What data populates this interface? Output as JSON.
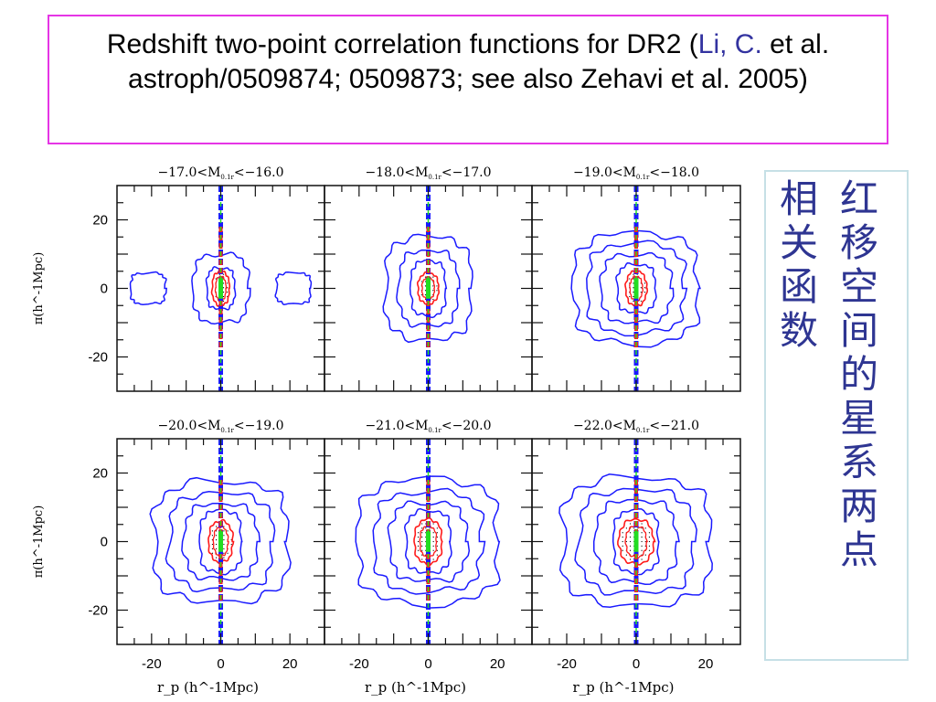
{
  "slide": {
    "title_main": "Redshift two-point correlation functions for DR2 (",
    "title_cite": "Li, C.",
    "title_rest": " et al. astroph/0509874; 0509873; see also Zehavi et al. 2005)",
    "side_text_col1": [
      "红",
      "移",
      "空",
      "间",
      "的",
      "星",
      "系",
      "两",
      "点"
    ],
    "side_text_col2": [
      "相",
      "关",
      "函",
      "数"
    ],
    "colors": {
      "border": "#e535e5",
      "cite": "#3333a0",
      "side_text": "#2e3592",
      "side_border": "#c6e0e6"
    }
  },
  "chart_data": {
    "type": "contour",
    "layout": "2x3 grid",
    "xlabel": "r_p (h^-1Mpc)",
    "ylabel": "π(h^-1Mpc)",
    "xlim": [
      -30,
      30
    ],
    "ylim": [
      -30,
      30
    ],
    "xticks": [
      -20,
      0,
      20
    ],
    "yticks": [
      -20,
      0,
      20
    ],
    "xtick_labels": [
      "-20",
      "0",
      "20"
    ],
    "ytick_labels": [
      "20",
      "0",
      "-20"
    ],
    "contour_colors": {
      "outer": "#1a1aff",
      "inner": "#ff1a1a",
      "core": "#22dd22",
      "dots": "#000000"
    },
    "panels": [
      {
        "label": "−17.0<M0.1r<−16.0",
        "title_prefix": "−17.0<M",
        "title_sub": "0.1r",
        "title_suffix": "<−16.0",
        "contours_blue": [
          [
            4,
            6
          ],
          [
            8,
            10
          ]
        ],
        "contours_red": [
          [
            2.5,
            5
          ]
        ],
        "side_lobes": true
      },
      {
        "label": "−18.0<M0.1r<−17.0",
        "title_prefix": "−18.0<M",
        "title_sub": "0.1r",
        "title_suffix": "<−17.0",
        "contours_blue": [
          [
            5,
            8
          ],
          [
            8.5,
            11
          ],
          [
            12.5,
            15
          ]
        ],
        "contours_red": [
          [
            3,
            4.5
          ]
        ],
        "side_lobes": false
      },
      {
        "label": "−19.0<M0.1r<−18.0",
        "title_prefix": "−19.0<M",
        "title_sub": "0.1r",
        "title_suffix": "<−18.0",
        "contours_blue": [
          [
            5.5,
            7
          ],
          [
            10,
            10
          ],
          [
            14,
            13
          ],
          [
            18,
            16
          ]
        ],
        "contours_red": [
          [
            3,
            5
          ]
        ],
        "side_lobes": false
      },
      {
        "label": "−20.0<M0.1r<−19.0",
        "title_prefix": "−20.0<M",
        "title_sub": "0.1r",
        "title_suffix": "<−19.0",
        "contours_blue": [
          [
            6,
            9
          ],
          [
            10.5,
            11
          ],
          [
            15,
            14
          ],
          [
            19.5,
            17.5
          ]
        ],
        "contours_red": [
          [
            3.5,
            6
          ]
        ],
        "side_lobes": false
      },
      {
        "label": "−21.0<M0.1r<−20.0",
        "title_prefix": "−21.0<M",
        "title_sub": "0.1r",
        "title_suffix": "<−20.0",
        "contours_blue": [
          [
            6.5,
            9
          ],
          [
            11,
            11.5
          ],
          [
            15.5,
            14.5
          ],
          [
            20.5,
            18
          ]
        ],
        "contours_red": [
          [
            4,
            6.5
          ]
        ],
        "side_lobes": false
      },
      {
        "label": "−22.0<M0.1r<−21.0",
        "title_prefix": "−22.0<M",
        "title_sub": "0.1r",
        "title_suffix": "<−21.0",
        "contours_blue": [
          [
            6.5,
            9
          ],
          [
            11.5,
            12
          ],
          [
            16.5,
            15
          ],
          [
            21.5,
            18.5
          ]
        ],
        "contours_red": [
          [
            5,
            6.5
          ]
        ],
        "side_lobes": false
      }
    ]
  }
}
